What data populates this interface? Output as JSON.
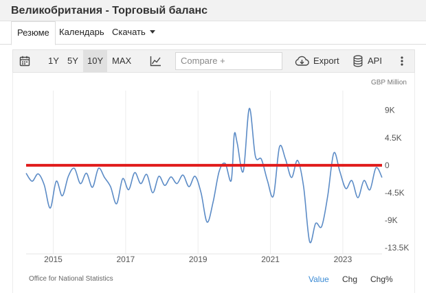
{
  "page": {
    "title": "Великобритания - Торговый баланс"
  },
  "tabs": [
    {
      "label": "Резюме",
      "active": true
    },
    {
      "label": "Календарь",
      "active": false
    },
    {
      "label": "Скачать",
      "active": false
    }
  ],
  "toolbar": {
    "ranges": [
      "1Y",
      "5Y",
      "10Y",
      "MAX"
    ],
    "selected_range": "10Y",
    "compare_placeholder": "Compare +",
    "export_label": "Export",
    "api_label": "API",
    "icons": [
      "calendar-icon",
      "chart-type-icon",
      "cloud-download-icon",
      "database-icon",
      "more-vertical-icon"
    ]
  },
  "chart_data": {
    "type": "line",
    "ylabel": "GBP Million",
    "y_ticks": [
      "9K",
      "4.5K",
      "0",
      "-4.5K",
      "-9K",
      "-13.5K"
    ],
    "y_tick_values": [
      9000,
      4500,
      0,
      -4500,
      -9000,
      -13500
    ],
    "ylim": [
      -14500,
      12000
    ],
    "xlim": [
      "2014-04",
      "2024-02"
    ],
    "x_tick_labels": [
      "2015",
      "2017",
      "2019",
      "2021",
      "2023"
    ],
    "grid": "vertical",
    "color": "#5b8bc6",
    "reference_line": {
      "value": 0,
      "color": "#e01b1b"
    },
    "series": [
      {
        "values": [
          [
            "2014-04",
            -1300
          ],
          [
            "2014-06",
            -2600
          ],
          [
            "2014-08",
            -1400
          ],
          [
            "2014-10",
            -3200
          ],
          [
            "2014-12",
            -7000
          ],
          [
            "2015-02",
            -2600
          ],
          [
            "2015-04",
            -5000
          ],
          [
            "2015-06",
            -1800
          ],
          [
            "2015-08",
            -500
          ],
          [
            "2015-10",
            -3000
          ],
          [
            "2015-12",
            -1300
          ],
          [
            "2016-02",
            -3600
          ],
          [
            "2016-04",
            -500
          ],
          [
            "2016-06",
            -2000
          ],
          [
            "2016-08",
            -3500
          ],
          [
            "2016-10",
            -6300
          ],
          [
            "2016-12",
            -2200
          ],
          [
            "2017-02",
            -4000
          ],
          [
            "2017-04",
            -1200
          ],
          [
            "2017-06",
            -3000
          ],
          [
            "2017-08",
            -1500
          ],
          [
            "2017-10",
            -4500
          ],
          [
            "2017-12",
            -1800
          ],
          [
            "2018-02",
            -3300
          ],
          [
            "2018-04",
            -1900
          ],
          [
            "2018-06",
            -3000
          ],
          [
            "2018-08",
            -1600
          ],
          [
            "2018-10",
            -3500
          ],
          [
            "2018-12",
            -1800
          ],
          [
            "2019-02",
            -4500
          ],
          [
            "2019-04",
            -9300
          ],
          [
            "2019-06",
            -6000
          ],
          [
            "2019-08",
            -1000
          ],
          [
            "2019-10",
            300
          ],
          [
            "2019-12",
            -2500
          ],
          [
            "2020-01",
            5000
          ],
          [
            "2020-02",
            3600
          ],
          [
            "2020-04",
            -1000
          ],
          [
            "2020-06",
            9300
          ],
          [
            "2020-08",
            1500
          ],
          [
            "2020-10",
            1000
          ],
          [
            "2020-12",
            -2500
          ],
          [
            "2021-02",
            -5000
          ],
          [
            "2021-04",
            3000
          ],
          [
            "2021-06",
            1000
          ],
          [
            "2021-08",
            -2000
          ],
          [
            "2021-10",
            800
          ],
          [
            "2021-12",
            -3500
          ],
          [
            "2022-02",
            -12500
          ],
          [
            "2022-04",
            -9500
          ],
          [
            "2022-06",
            -10000
          ],
          [
            "2022-08",
            -5000
          ],
          [
            "2022-10",
            2000
          ],
          [
            "2022-12",
            -1000
          ],
          [
            "2023-02",
            -3800
          ],
          [
            "2023-04",
            -2500
          ],
          [
            "2023-06",
            -5300
          ],
          [
            "2023-08",
            -2500
          ],
          [
            "2023-10",
            -4000
          ],
          [
            "2023-12",
            -400
          ],
          [
            "2024-02",
            -2000
          ]
        ]
      }
    ]
  },
  "footer": {
    "source": "Office for National Statistics",
    "tabs": [
      {
        "label": "Value",
        "active": true
      },
      {
        "label": "Chg",
        "active": false
      },
      {
        "label": "Chg%",
        "active": false
      }
    ],
    "active_color": "#3a8ad4"
  }
}
